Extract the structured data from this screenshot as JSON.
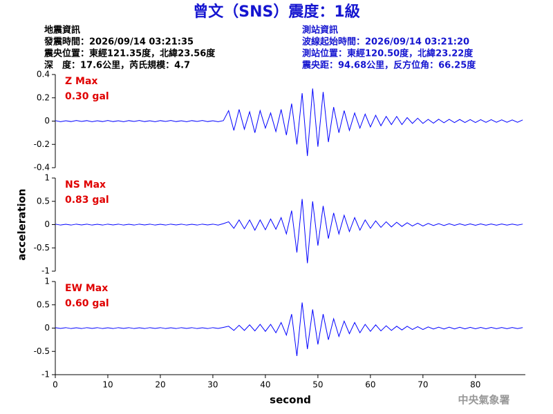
{
  "title": "曾文（SNS）震度：1級",
  "info_left": [
    "地震資訊",
    "發震時間：2026/09/14 03:21:35",
    "震央位置：東經121.35度，北緯23.56度",
    "深　度：17.6公里，芮氏規模：4.7"
  ],
  "info_right": [
    "測站資訊",
    "波線起始時間：2026/09/14 03:21:20",
    "測站位置：東經120.50度，北緯23.22度",
    "震央距：94.68公里，反方位角：66.25度"
  ],
  "footer": "中央氣象署",
  "chart_data": [
    {
      "type": "line",
      "annotation": [
        "Z Max",
        "0.30 gal"
      ],
      "color": "#0000ff",
      "xlim": [
        0,
        89.5
      ],
      "ylim": [
        -0.4,
        0.4
      ],
      "yticks": [
        -0.4,
        -0.2,
        0,
        0.2,
        0.4
      ],
      "x": [
        0,
        1,
        2,
        3,
        4,
        5,
        6,
        7,
        8,
        9,
        10,
        11,
        12,
        13,
        14,
        15,
        16,
        17,
        18,
        19,
        20,
        21,
        22,
        23,
        24,
        25,
        26,
        27,
        28,
        29,
        30,
        31,
        32,
        33,
        34,
        35,
        36,
        37,
        38,
        39,
        40,
        41,
        42,
        43,
        44,
        45,
        46,
        47,
        48,
        49,
        50,
        51,
        52,
        53,
        54,
        55,
        56,
        57,
        58,
        59,
        60,
        61,
        62,
        63,
        64,
        65,
        66,
        67,
        68,
        69,
        70,
        71,
        72,
        73,
        74,
        75,
        76,
        77,
        78,
        79,
        80,
        81,
        82,
        83,
        84,
        85,
        86,
        87,
        88,
        89
      ],
      "values": [
        0.004,
        -0.005,
        0.003,
        -0.004,
        0.005,
        -0.003,
        0.004,
        -0.005,
        0.003,
        -0.004,
        0.005,
        -0.004,
        0.003,
        -0.005,
        0.004,
        -0.003,
        0.005,
        -0.004,
        0.003,
        -0.005,
        0.004,
        -0.003,
        0.005,
        -0.004,
        0.003,
        -0.005,
        0.004,
        -0.003,
        0.005,
        -0.004,
        0.003,
        -0.005,
        0.004,
        0.09,
        -0.08,
        0.1,
        -0.07,
        0.08,
        -0.1,
        0.09,
        -0.06,
        0.07,
        -0.09,
        0.1,
        -0.12,
        0.15,
        -0.2,
        0.24,
        -0.3,
        0.28,
        -0.22,
        0.25,
        -0.18,
        0.12,
        -0.1,
        0.09,
        -0.08,
        0.07,
        -0.06,
        0.06,
        -0.05,
        0.05,
        -0.04,
        0.04,
        -0.03,
        0.04,
        -0.03,
        0.03,
        -0.02,
        0.025,
        -0.02,
        0.015,
        -0.018,
        0.016,
        -0.014,
        0.015,
        -0.013,
        0.014,
        -0.012,
        0.013,
        -0.012,
        0.012,
        -0.011,
        0.012,
        -0.01,
        0.011,
        -0.01,
        0.01,
        -0.01,
        0.01
      ]
    },
    {
      "type": "line",
      "annotation": [
        "NS Max",
        "0.83 gal"
      ],
      "color": "#0000ff",
      "y_label": "acceleration",
      "xlim": [
        0,
        89.5
      ],
      "ylim": [
        -1,
        1
      ],
      "yticks": [
        -1,
        -0.5,
        0,
        0.5,
        1
      ],
      "x": [
        0,
        1,
        2,
        3,
        4,
        5,
        6,
        7,
        8,
        9,
        10,
        11,
        12,
        13,
        14,
        15,
        16,
        17,
        18,
        19,
        20,
        21,
        22,
        23,
        24,
        25,
        26,
        27,
        28,
        29,
        30,
        31,
        32,
        33,
        34,
        35,
        36,
        37,
        38,
        39,
        40,
        41,
        42,
        43,
        44,
        45,
        46,
        47,
        48,
        49,
        50,
        51,
        52,
        53,
        54,
        55,
        56,
        57,
        58,
        59,
        60,
        61,
        62,
        63,
        64,
        65,
        66,
        67,
        68,
        69,
        70,
        71,
        72,
        73,
        74,
        75,
        76,
        77,
        78,
        79,
        80,
        81,
        82,
        83,
        84,
        85,
        86,
        87,
        88,
        89
      ],
      "values": [
        0.01,
        -0.01,
        0.008,
        -0.01,
        0.01,
        -0.008,
        0.01,
        -0.01,
        0.008,
        -0.01,
        0.01,
        -0.008,
        0.01,
        -0.01,
        0.008,
        -0.01,
        0.01,
        -0.008,
        0.01,
        -0.01,
        0.008,
        -0.01,
        0.01,
        -0.008,
        0.01,
        -0.01,
        0.008,
        -0.01,
        0.01,
        -0.008,
        0.01,
        -0.01,
        0.02,
        0.06,
        -0.08,
        0.1,
        -0.09,
        0.1,
        -0.12,
        0.1,
        -0.11,
        0.12,
        -0.1,
        0.15,
        -0.2,
        0.3,
        -0.6,
        0.55,
        -0.83,
        0.5,
        -0.45,
        0.4,
        -0.3,
        0.25,
        -0.2,
        0.2,
        -0.15,
        0.15,
        -0.12,
        0.1,
        -0.08,
        0.08,
        -0.06,
        0.06,
        -0.05,
        0.05,
        -0.04,
        0.04,
        -0.03,
        0.03,
        -0.03,
        0.025,
        -0.02,
        0.02,
        -0.02,
        0.018,
        -0.016,
        0.016,
        -0.015,
        0.015,
        -0.014,
        0.014,
        -0.013,
        0.013,
        -0.012,
        0.012,
        -0.011,
        0.011,
        -0.01,
        0.01
      ]
    },
    {
      "type": "line",
      "annotation": [
        "EW Max",
        "0.60 gal"
      ],
      "color": "#0000ff",
      "x_label": "second",
      "xlim": [
        0,
        89.5
      ],
      "ylim": [
        -1,
        1
      ],
      "yticks": [
        -1,
        -0.5,
        0,
        0.5,
        1
      ],
      "xticks": [
        0,
        10,
        20,
        30,
        40,
        50,
        60,
        70,
        80
      ],
      "x": [
        0,
        1,
        2,
        3,
        4,
        5,
        6,
        7,
        8,
        9,
        10,
        11,
        12,
        13,
        14,
        15,
        16,
        17,
        18,
        19,
        20,
        21,
        22,
        23,
        24,
        25,
        26,
        27,
        28,
        29,
        30,
        31,
        32,
        33,
        34,
        35,
        36,
        37,
        38,
        39,
        40,
        41,
        42,
        43,
        44,
        45,
        46,
        47,
        48,
        49,
        50,
        51,
        52,
        53,
        54,
        55,
        56,
        57,
        58,
        59,
        60,
        61,
        62,
        63,
        64,
        65,
        66,
        67,
        68,
        69,
        70,
        71,
        72,
        73,
        74,
        75,
        76,
        77,
        78,
        79,
        80,
        81,
        82,
        83,
        84,
        85,
        86,
        87,
        88,
        89
      ],
      "values": [
        0.01,
        -0.008,
        0.01,
        -0.01,
        0.008,
        -0.01,
        0.01,
        -0.008,
        0.01,
        -0.01,
        0.008,
        -0.01,
        0.01,
        -0.008,
        0.01,
        -0.01,
        0.008,
        -0.01,
        0.01,
        -0.008,
        0.01,
        -0.01,
        0.008,
        -0.01,
        0.01,
        -0.008,
        0.01,
        -0.01,
        0.008,
        -0.01,
        0.01,
        -0.008,
        0.015,
        0.04,
        -0.05,
        0.06,
        -0.05,
        0.07,
        -0.06,
        0.08,
        -0.07,
        0.08,
        -0.1,
        0.12,
        -0.15,
        0.3,
        -0.6,
        0.55,
        -0.45,
        0.4,
        -0.35,
        0.3,
        -0.25,
        0.2,
        -0.18,
        0.15,
        -0.12,
        0.12,
        -0.1,
        0.08,
        -0.07,
        0.07,
        -0.06,
        0.05,
        -0.05,
        0.04,
        -0.04,
        0.04,
        -0.03,
        0.03,
        -0.03,
        0.025,
        -0.02,
        0.02,
        -0.02,
        0.02,
        -0.018,
        0.018,
        -0.016,
        0.016,
        -0.015,
        0.015,
        -0.014,
        0.014,
        -0.013,
        0.013,
        -0.012,
        0.012,
        -0.011,
        0.011
      ]
    }
  ]
}
